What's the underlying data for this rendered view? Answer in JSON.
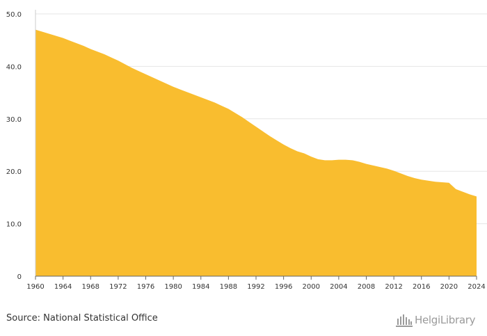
{
  "chart_data": {
    "type": "area",
    "title": "",
    "xlabel": "",
    "ylabel": "",
    "x": [
      1960,
      1961,
      1962,
      1963,
      1964,
      1965,
      1966,
      1967,
      1968,
      1969,
      1970,
      1971,
      1972,
      1973,
      1974,
      1975,
      1976,
      1977,
      1978,
      1979,
      1980,
      1981,
      1982,
      1983,
      1984,
      1985,
      1986,
      1987,
      1988,
      1989,
      1990,
      1991,
      1992,
      1993,
      1994,
      1995,
      1996,
      1997,
      1998,
      1999,
      2000,
      2001,
      2002,
      2003,
      2004,
      2005,
      2006,
      2007,
      2008,
      2009,
      2010,
      2011,
      2012,
      2013,
      2014,
      2015,
      2016,
      2017,
      2018,
      2019,
      2020,
      2021,
      2022,
      2023,
      2024
    ],
    "values": [
      47.0,
      46.6,
      46.2,
      45.8,
      45.4,
      44.9,
      44.4,
      43.9,
      43.3,
      42.8,
      42.3,
      41.7,
      41.1,
      40.4,
      39.7,
      39.1,
      38.5,
      37.9,
      37.3,
      36.7,
      36.1,
      35.6,
      35.1,
      34.6,
      34.1,
      33.6,
      33.1,
      32.5,
      31.9,
      31.1,
      30.3,
      29.4,
      28.5,
      27.6,
      26.7,
      25.9,
      25.1,
      24.4,
      23.8,
      23.4,
      22.8,
      22.3,
      22.1,
      22.1,
      22.2,
      22.2,
      22.1,
      21.8,
      21.4,
      21.1,
      20.8,
      20.5,
      20.1,
      19.6,
      19.1,
      18.7,
      18.4,
      18.2,
      18.0,
      17.9,
      17.8,
      16.6,
      16.1,
      15.6,
      15.2
    ],
    "xticks": [
      "1960",
      "1964",
      "1968",
      "1972",
      "1976",
      "1980",
      "1984",
      "1988",
      "1992",
      "1996",
      "2000",
      "2004",
      "2008",
      "2012",
      "2016",
      "2020",
      "2024"
    ],
    "yticks": [
      "0",
      "10.0",
      "20.0",
      "30.0",
      "40.0",
      "50.0"
    ],
    "ylim": [
      0,
      50
    ],
    "xlim": [
      1960,
      2024
    ],
    "grid": true,
    "colors": {
      "area": "#f9bd2f",
      "grid": "#e6e6e6",
      "axis": "#666666",
      "text": "#333333"
    }
  },
  "footer": {
    "source": "Source: National Statistical Office",
    "logo_text": "HelgiLibrary"
  }
}
